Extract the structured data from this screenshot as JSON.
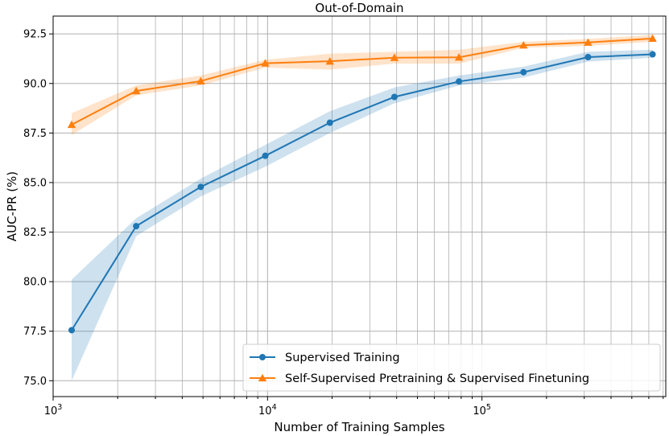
{
  "chart_data": {
    "type": "line",
    "title": "Out-of-Domain",
    "xlabel": "Number of Training Samples",
    "ylabel": "AUC-PR (%)",
    "xscale": "log",
    "xlim": [
      1000,
      720000
    ],
    "ylim": [
      74.2,
      93.4
    ],
    "x_ticks": [
      {
        "value": 1000,
        "base": "10",
        "exp": "3"
      },
      {
        "value": 10000,
        "base": "10",
        "exp": "4"
      },
      {
        "value": 100000,
        "base": "10",
        "exp": "5"
      }
    ],
    "y_ticks": [
      {
        "value": 75.0,
        "label": "75.0"
      },
      {
        "value": 77.5,
        "label": "77.5"
      },
      {
        "value": 80.0,
        "label": "80.0"
      },
      {
        "value": 82.5,
        "label": "82.5"
      },
      {
        "value": 85.0,
        "label": "85.0"
      },
      {
        "value": 87.5,
        "label": "87.5"
      },
      {
        "value": 90.0,
        "label": "90.0"
      },
      {
        "value": 92.5,
        "label": "92.5"
      }
    ],
    "grid": true,
    "legend_position": "lower-right",
    "x": [
      1220,
      2440,
      4880,
      9760,
      19530,
      39060,
      78120,
      156250,
      312500,
      625000
    ],
    "series": [
      {
        "name": "Supervised Training",
        "color": "#1f77b4",
        "marker": "circle",
        "values": [
          77.55,
          82.8,
          84.78,
          86.35,
          88.02,
          89.32,
          90.1,
          90.57,
          91.33,
          91.47
        ],
        "lower": [
          75.0,
          82.3,
          84.3,
          85.8,
          87.5,
          89.0,
          89.9,
          90.3,
          91.1,
          91.3
        ],
        "upper": [
          80.1,
          83.2,
          85.2,
          86.9,
          88.6,
          89.8,
          90.4,
          90.85,
          91.6,
          91.7
        ]
      },
      {
        "name": "Self-Supervised Pretraining & Supervised Finetuning",
        "color": "#ff7f0e",
        "marker": "triangle",
        "values": [
          87.92,
          89.62,
          90.12,
          91.02,
          91.12,
          91.3,
          91.32,
          91.93,
          92.07,
          92.27
        ],
        "lower": [
          87.4,
          89.4,
          89.9,
          90.8,
          90.7,
          91.0,
          91.0,
          91.8,
          91.9,
          92.1
        ],
        "upper": [
          88.5,
          89.9,
          90.4,
          91.2,
          91.5,
          91.6,
          91.7,
          92.1,
          92.25,
          92.45
        ]
      }
    ]
  }
}
